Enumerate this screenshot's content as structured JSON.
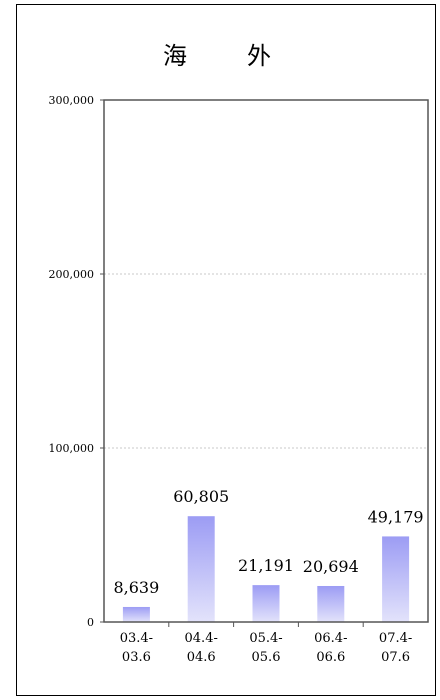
{
  "chart_data": {
    "type": "bar",
    "title": "海　外",
    "categories": [
      [
        "03.4-",
        "03.6"
      ],
      [
        "04.4-",
        "04.6"
      ],
      [
        "05.4-",
        "05.6"
      ],
      [
        "06.4-",
        "06.6"
      ],
      [
        "07.4-",
        "07.6"
      ]
    ],
    "values": [
      8639,
      60805,
      21191,
      20694,
      49179
    ],
    "data_labels": [
      "8,639",
      "60,805",
      "21,191",
      "20,694",
      "49,179"
    ],
    "yticks": [
      0,
      100000,
      200000,
      300000
    ],
    "ytick_labels": [
      "0",
      "100,000",
      "200,000",
      "300,000"
    ],
    "ylim": [
      0,
      300000
    ],
    "grid": true,
    "legend": "none",
    "colors": {
      "bar_top": "#9c9cf4",
      "bar_bottom": "#e3e3fb",
      "grid": "#b8b8b8",
      "axis": "#555555"
    }
  }
}
